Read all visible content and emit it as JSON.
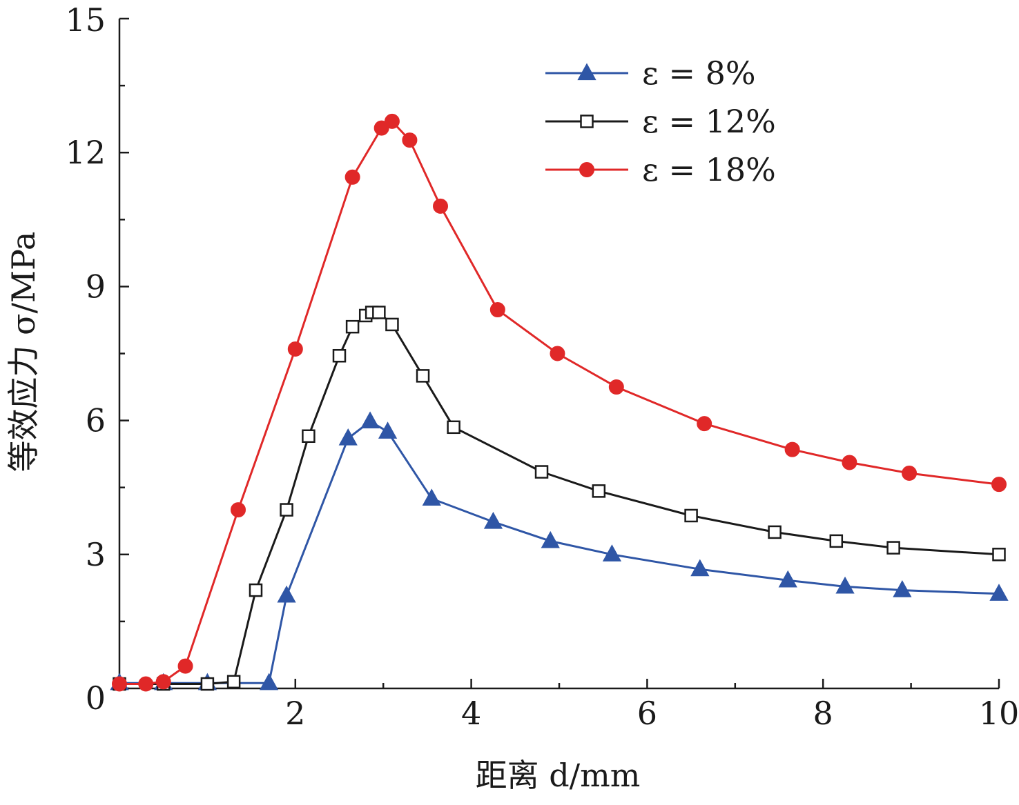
{
  "chart_data": {
    "type": "line",
    "title": "",
    "xlabel": "距离 d/mm",
    "ylabel": "等效应力 σ/MPa",
    "xlim": [
      0,
      10
    ],
    "ylim": [
      0,
      15
    ],
    "xticks": [
      {
        "value": 0,
        "label": ""
      },
      {
        "value": 2,
        "label": "2"
      },
      {
        "value": 4,
        "label": "4"
      },
      {
        "value": 6,
        "label": "6"
      },
      {
        "value": 8,
        "label": "8"
      },
      {
        "value": 10,
        "label": "10"
      }
    ],
    "yticks": [
      {
        "value": 0,
        "label": "0"
      },
      {
        "value": 3,
        "label": "3"
      },
      {
        "value": 6,
        "label": "6"
      },
      {
        "value": 9,
        "label": "9"
      },
      {
        "value": 12,
        "label": "12"
      },
      {
        "value": 15,
        "label": "15"
      }
    ],
    "grid": false,
    "legend_position": "top-right",
    "series": [
      {
        "name": "ε = 8%",
        "color": "#2f56a6",
        "marker": "filled-triangle",
        "points": [
          {
            "x": 0.0,
            "y": 0.12
          },
          {
            "x": 0.5,
            "y": 0.12
          },
          {
            "x": 1.0,
            "y": 0.12
          },
          {
            "x": 1.7,
            "y": 0.12
          },
          {
            "x": 1.9,
            "y": 2.08
          },
          {
            "x": 2.6,
            "y": 5.6
          },
          {
            "x": 2.85,
            "y": 5.98
          },
          {
            "x": 3.05,
            "y": 5.75
          },
          {
            "x": 3.55,
            "y": 4.25
          },
          {
            "x": 4.25,
            "y": 3.73
          },
          {
            "x": 4.9,
            "y": 3.3
          },
          {
            "x": 5.6,
            "y": 3.0
          },
          {
            "x": 6.6,
            "y": 2.67
          },
          {
            "x": 7.6,
            "y": 2.42
          },
          {
            "x": 8.25,
            "y": 2.28
          },
          {
            "x": 8.9,
            "y": 2.2
          },
          {
            "x": 10.0,
            "y": 2.12
          }
        ]
      },
      {
        "name": "ε = 12%",
        "color": "#1a1a1a",
        "marker": "open-square",
        "points": [
          {
            "x": 0.0,
            "y": 0.1
          },
          {
            "x": 0.5,
            "y": 0.1
          },
          {
            "x": 1.0,
            "y": 0.1
          },
          {
            "x": 1.3,
            "y": 0.15
          },
          {
            "x": 1.55,
            "y": 2.2
          },
          {
            "x": 1.9,
            "y": 4.0
          },
          {
            "x": 2.15,
            "y": 5.65
          },
          {
            "x": 2.5,
            "y": 7.45
          },
          {
            "x": 2.65,
            "y": 8.1
          },
          {
            "x": 2.8,
            "y": 8.35
          },
          {
            "x": 2.87,
            "y": 8.42
          },
          {
            "x": 2.95,
            "y": 8.42
          },
          {
            "x": 3.1,
            "y": 8.15
          },
          {
            "x": 3.45,
            "y": 7.0
          },
          {
            "x": 3.8,
            "y": 5.85
          },
          {
            "x": 4.8,
            "y": 4.85
          },
          {
            "x": 5.45,
            "y": 4.42
          },
          {
            "x": 6.5,
            "y": 3.87
          },
          {
            "x": 7.45,
            "y": 3.5
          },
          {
            "x": 8.15,
            "y": 3.3
          },
          {
            "x": 8.8,
            "y": 3.15
          },
          {
            "x": 10.0,
            "y": 3.0
          }
        ]
      },
      {
        "name": "ε = 18%",
        "color": "#e02828",
        "marker": "filled-circle",
        "points": [
          {
            "x": 0.0,
            "y": 0.1
          },
          {
            "x": 0.3,
            "y": 0.1
          },
          {
            "x": 0.5,
            "y": 0.15
          },
          {
            "x": 0.75,
            "y": 0.5
          },
          {
            "x": 1.35,
            "y": 4.0
          },
          {
            "x": 2.0,
            "y": 7.6
          },
          {
            "x": 2.65,
            "y": 11.45
          },
          {
            "x": 2.98,
            "y": 12.55
          },
          {
            "x": 3.1,
            "y": 12.7
          },
          {
            "x": 3.3,
            "y": 12.28
          },
          {
            "x": 3.65,
            "y": 10.8
          },
          {
            "x": 4.3,
            "y": 8.48
          },
          {
            "x": 4.98,
            "y": 7.5
          },
          {
            "x": 5.65,
            "y": 6.75
          },
          {
            "x": 6.65,
            "y": 5.93
          },
          {
            "x": 7.65,
            "y": 5.35
          },
          {
            "x": 8.3,
            "y": 5.06
          },
          {
            "x": 8.98,
            "y": 4.82
          },
          {
            "x": 10.0,
            "y": 4.57
          }
        ]
      }
    ]
  }
}
